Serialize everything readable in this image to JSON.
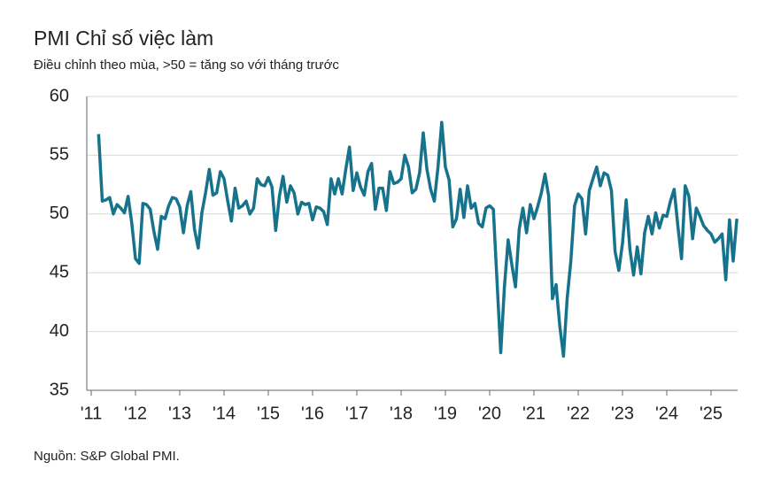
{
  "chart_data": {
    "type": "line",
    "title": "PMI Chỉ số việc làm",
    "subtitle": "Điều chỉnh theo mùa, >50 = tăng so với tháng trước",
    "source": "Nguồn: S&P Global PMI.",
    "x": [
      2011.167,
      2011.25,
      2011.333,
      2011.417,
      2011.5,
      2011.583,
      2011.667,
      2011.75,
      2011.833,
      2011.917,
      2012,
      2012.083,
      2012.167,
      2012.25,
      2012.333,
      2012.417,
      2012.5,
      2012.583,
      2012.667,
      2012.75,
      2012.833,
      2012.917,
      2013,
      2013.083,
      2013.167,
      2013.25,
      2013.333,
      2013.417,
      2013.5,
      2013.583,
      2013.667,
      2013.75,
      2013.833,
      2013.917,
      2014,
      2014.083,
      2014.167,
      2014.25,
      2014.333,
      2014.417,
      2014.5,
      2014.583,
      2014.667,
      2014.75,
      2014.833,
      2014.917,
      2015,
      2015.083,
      2015.167,
      2015.25,
      2015.333,
      2015.417,
      2015.5,
      2015.583,
      2015.667,
      2015.75,
      2015.833,
      2015.917,
      2016,
      2016.083,
      2016.167,
      2016.25,
      2016.333,
      2016.417,
      2016.5,
      2016.583,
      2016.667,
      2016.75,
      2016.833,
      2016.917,
      2017,
      2017.083,
      2017.167,
      2017.25,
      2017.333,
      2017.417,
      2017.5,
      2017.583,
      2017.667,
      2017.75,
      2017.833,
      2017.917,
      2018,
      2018.083,
      2018.167,
      2018.25,
      2018.333,
      2018.417,
      2018.5,
      2018.583,
      2018.667,
      2018.75,
      2018.833,
      2018.917,
      2019,
      2019.083,
      2019.167,
      2019.25,
      2019.333,
      2019.417,
      2019.5,
      2019.583,
      2019.667,
      2019.75,
      2019.833,
      2019.917,
      2020,
      2020.083,
      2020.167,
      2020.25,
      2020.333,
      2020.417,
      2020.5,
      2020.583,
      2020.667,
      2020.75,
      2020.833,
      2020.917,
      2021,
      2021.083,
      2021.167,
      2021.25,
      2021.333,
      2021.417,
      2021.5,
      2021.583,
      2021.667,
      2021.75,
      2021.833,
      2021.917,
      2022,
      2022.083,
      2022.167,
      2022.25,
      2022.333,
      2022.417,
      2022.5,
      2022.583,
      2022.667,
      2022.75,
      2022.833,
      2022.917,
      2023,
      2023.083,
      2023.167,
      2023.25,
      2023.333,
      2023.417,
      2023.5,
      2023.583,
      2023.667,
      2023.75,
      2023.833,
      2023.917,
      2024,
      2024.083,
      2024.167,
      2024.25,
      2024.333,
      2024.417,
      2024.5,
      2024.583,
      2024.667,
      2024.75,
      2024.833,
      2024.917,
      2025,
      2025.083,
      2025.167,
      2025.25,
      2025.333,
      2025.417,
      2025.5,
      2025.583
    ],
    "series": [
      {
        "color": "#17728c",
        "values": [
          56.8,
          51.1,
          51.2,
          51.4,
          50.0,
          50.8,
          50.5,
          50.1,
          51.5,
          49.2,
          46.2,
          45.8,
          50.9,
          50.8,
          50.4,
          48.5,
          47.0,
          49.8,
          49.6,
          50.7,
          51.4,
          51.3,
          50.6,
          48.4,
          50.7,
          51.9,
          48.7,
          47.1,
          50.1,
          51.8,
          53.8,
          51.6,
          51.8,
          53.6,
          53.0,
          51.1,
          49.4,
          52.2,
          50.5,
          50.7,
          51.1,
          50.0,
          50.5,
          53.0,
          52.5,
          52.4,
          53.1,
          52.3,
          48.6,
          51.5,
          53.2,
          51.0,
          52.4,
          51.8,
          50.0,
          51.0,
          50.8,
          50.9,
          49.5,
          50.6,
          50.5,
          50.2,
          49.1,
          53.0,
          51.7,
          53.0,
          51.7,
          53.8,
          55.7,
          52.0,
          53.5,
          52.3,
          51.6,
          53.6,
          54.3,
          50.4,
          52.2,
          52.2,
          50.3,
          53.6,
          52.6,
          52.7,
          53.0,
          55.0,
          54.0,
          51.8,
          52.1,
          53.5,
          56.9,
          53.8,
          52.1,
          51.1,
          54.0,
          57.8,
          54.0,
          52.9,
          48.9,
          49.6,
          52.1,
          49.7,
          52.4,
          50.5,
          50.9,
          49.2,
          48.9,
          50.5,
          50.7,
          50.4,
          44.2,
          38.2,
          43.8,
          47.8,
          45.7,
          43.8,
          48.7,
          50.5,
          48.4,
          50.8,
          49.6,
          50.6,
          51.8,
          53.4,
          51.5,
          42.8,
          44.0,
          40.5,
          37.9,
          42.8,
          46.0,
          50.7,
          51.7,
          51.3,
          48.3,
          52.0,
          53.0,
          54.0,
          52.4,
          53.5,
          53.3,
          52.0,
          46.8,
          45.2,
          47.5,
          51.2,
          47.0,
          44.8,
          47.2,
          44.9,
          48.4,
          49.8,
          48.3,
          50.1,
          48.8,
          49.9,
          49.8,
          51.1,
          52.1,
          49.0,
          46.2,
          52.4,
          51.5,
          47.9,
          50.5,
          49.8,
          49.0,
          48.6,
          48.3,
          47.6,
          47.9,
          48.3,
          44.4,
          49.5,
          46.0,
          49.6
        ]
      }
    ],
    "xlim": [
      2010.9,
      2025.6
    ],
    "xticks": [
      {
        "value": 2011,
        "label": "'11"
      },
      {
        "value": 2012,
        "label": "'12"
      },
      {
        "value": 2013,
        "label": "'13"
      },
      {
        "value": 2014,
        "label": "'14"
      },
      {
        "value": 2015,
        "label": "'15"
      },
      {
        "value": 2016,
        "label": "'16"
      },
      {
        "value": 2017,
        "label": "'17"
      },
      {
        "value": 2018,
        "label": "'18"
      },
      {
        "value": 2019,
        "label": "'19"
      },
      {
        "value": 2020,
        "label": "'20"
      },
      {
        "value": 2021,
        "label": "'21"
      },
      {
        "value": 2022,
        "label": "'22"
      },
      {
        "value": 2023,
        "label": "'23"
      },
      {
        "value": 2024,
        "label": "'24"
      },
      {
        "value": 2025,
        "label": "'25"
      }
    ],
    "ylim": [
      35,
      60
    ],
    "yticks": [
      35,
      40,
      45,
      50,
      55,
      60
    ],
    "grid": true
  }
}
